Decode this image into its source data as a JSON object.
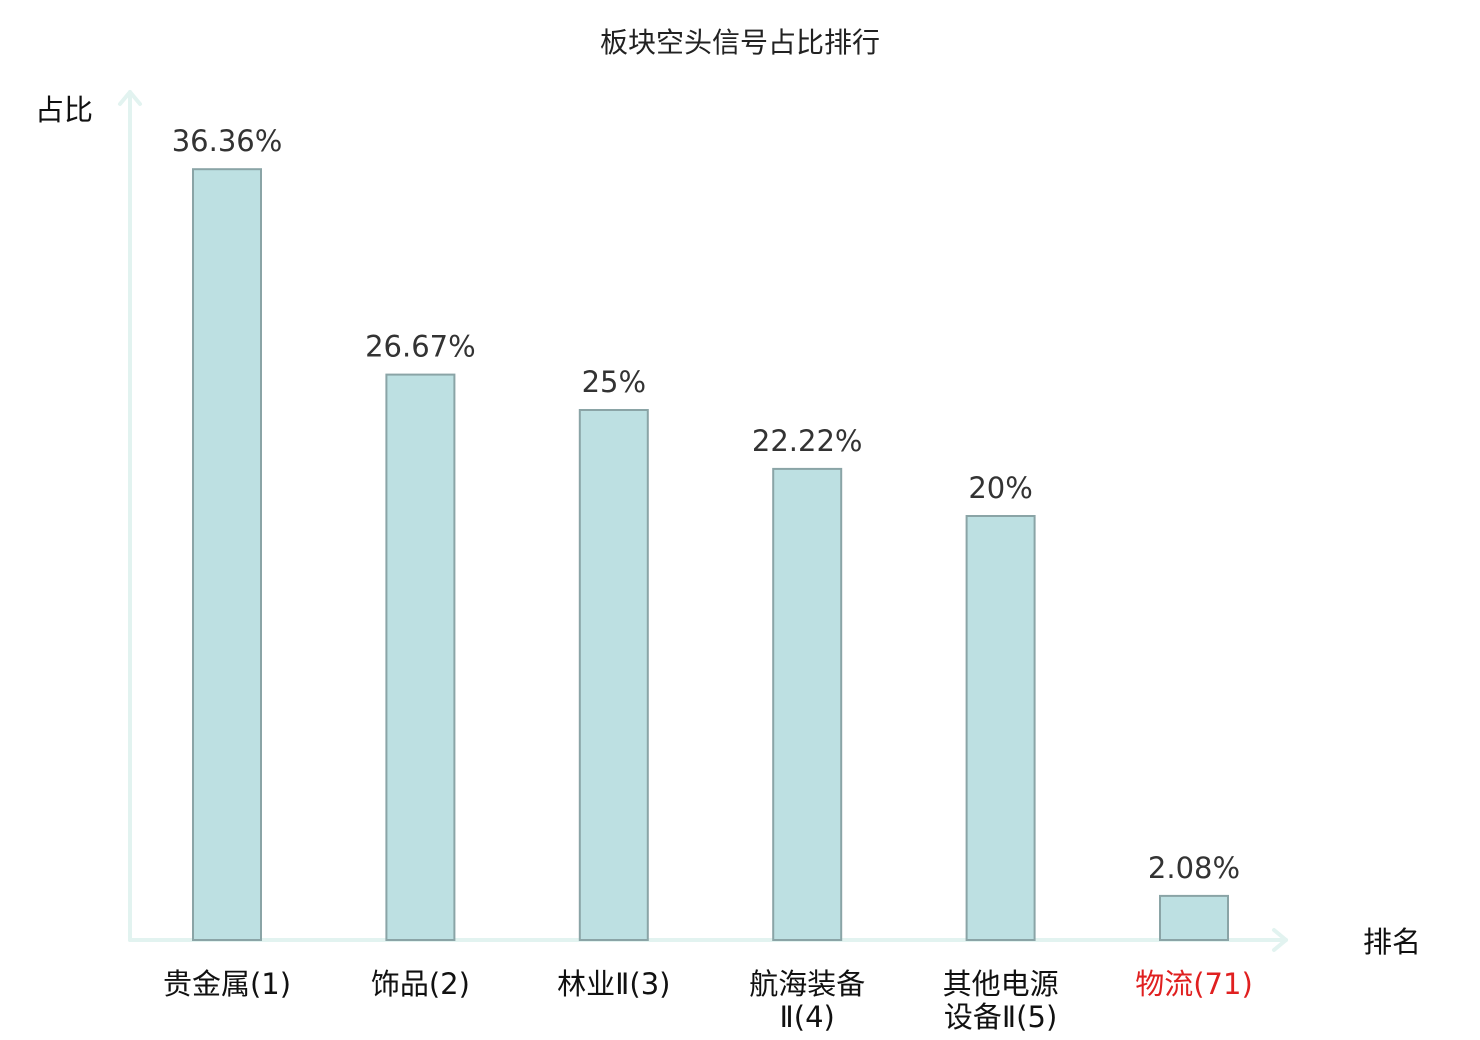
{
  "chart_data": {
    "type": "bar",
    "title": "板块空头信号占比排行",
    "ylabel": "占比",
    "xlabel": "排名",
    "ylim": [
      0,
      40
    ],
    "grid": false,
    "legend": "none",
    "categories": [
      [
        "贵金属(1)"
      ],
      [
        "饰品(2)"
      ],
      [
        "林业Ⅱ(3)"
      ],
      [
        "航海装备",
        "Ⅱ(4)"
      ],
      [
        "其他电源",
        "设备Ⅱ(5)"
      ],
      [
        "物流(71)"
      ]
    ],
    "values": [
      36.36,
      26.67,
      25,
      22.22,
      20,
      2.08
    ],
    "value_labels": [
      "36.36%",
      "26.67%",
      "25%",
      "22.22%",
      "20%",
      "2.08%"
    ],
    "highlight_index": 5,
    "colors": {
      "bar_fill": "#bde0e2",
      "bar_stroke": "#8aa4a6",
      "axis": "#e2f3f0",
      "highlight_label": "#e02020"
    }
  }
}
